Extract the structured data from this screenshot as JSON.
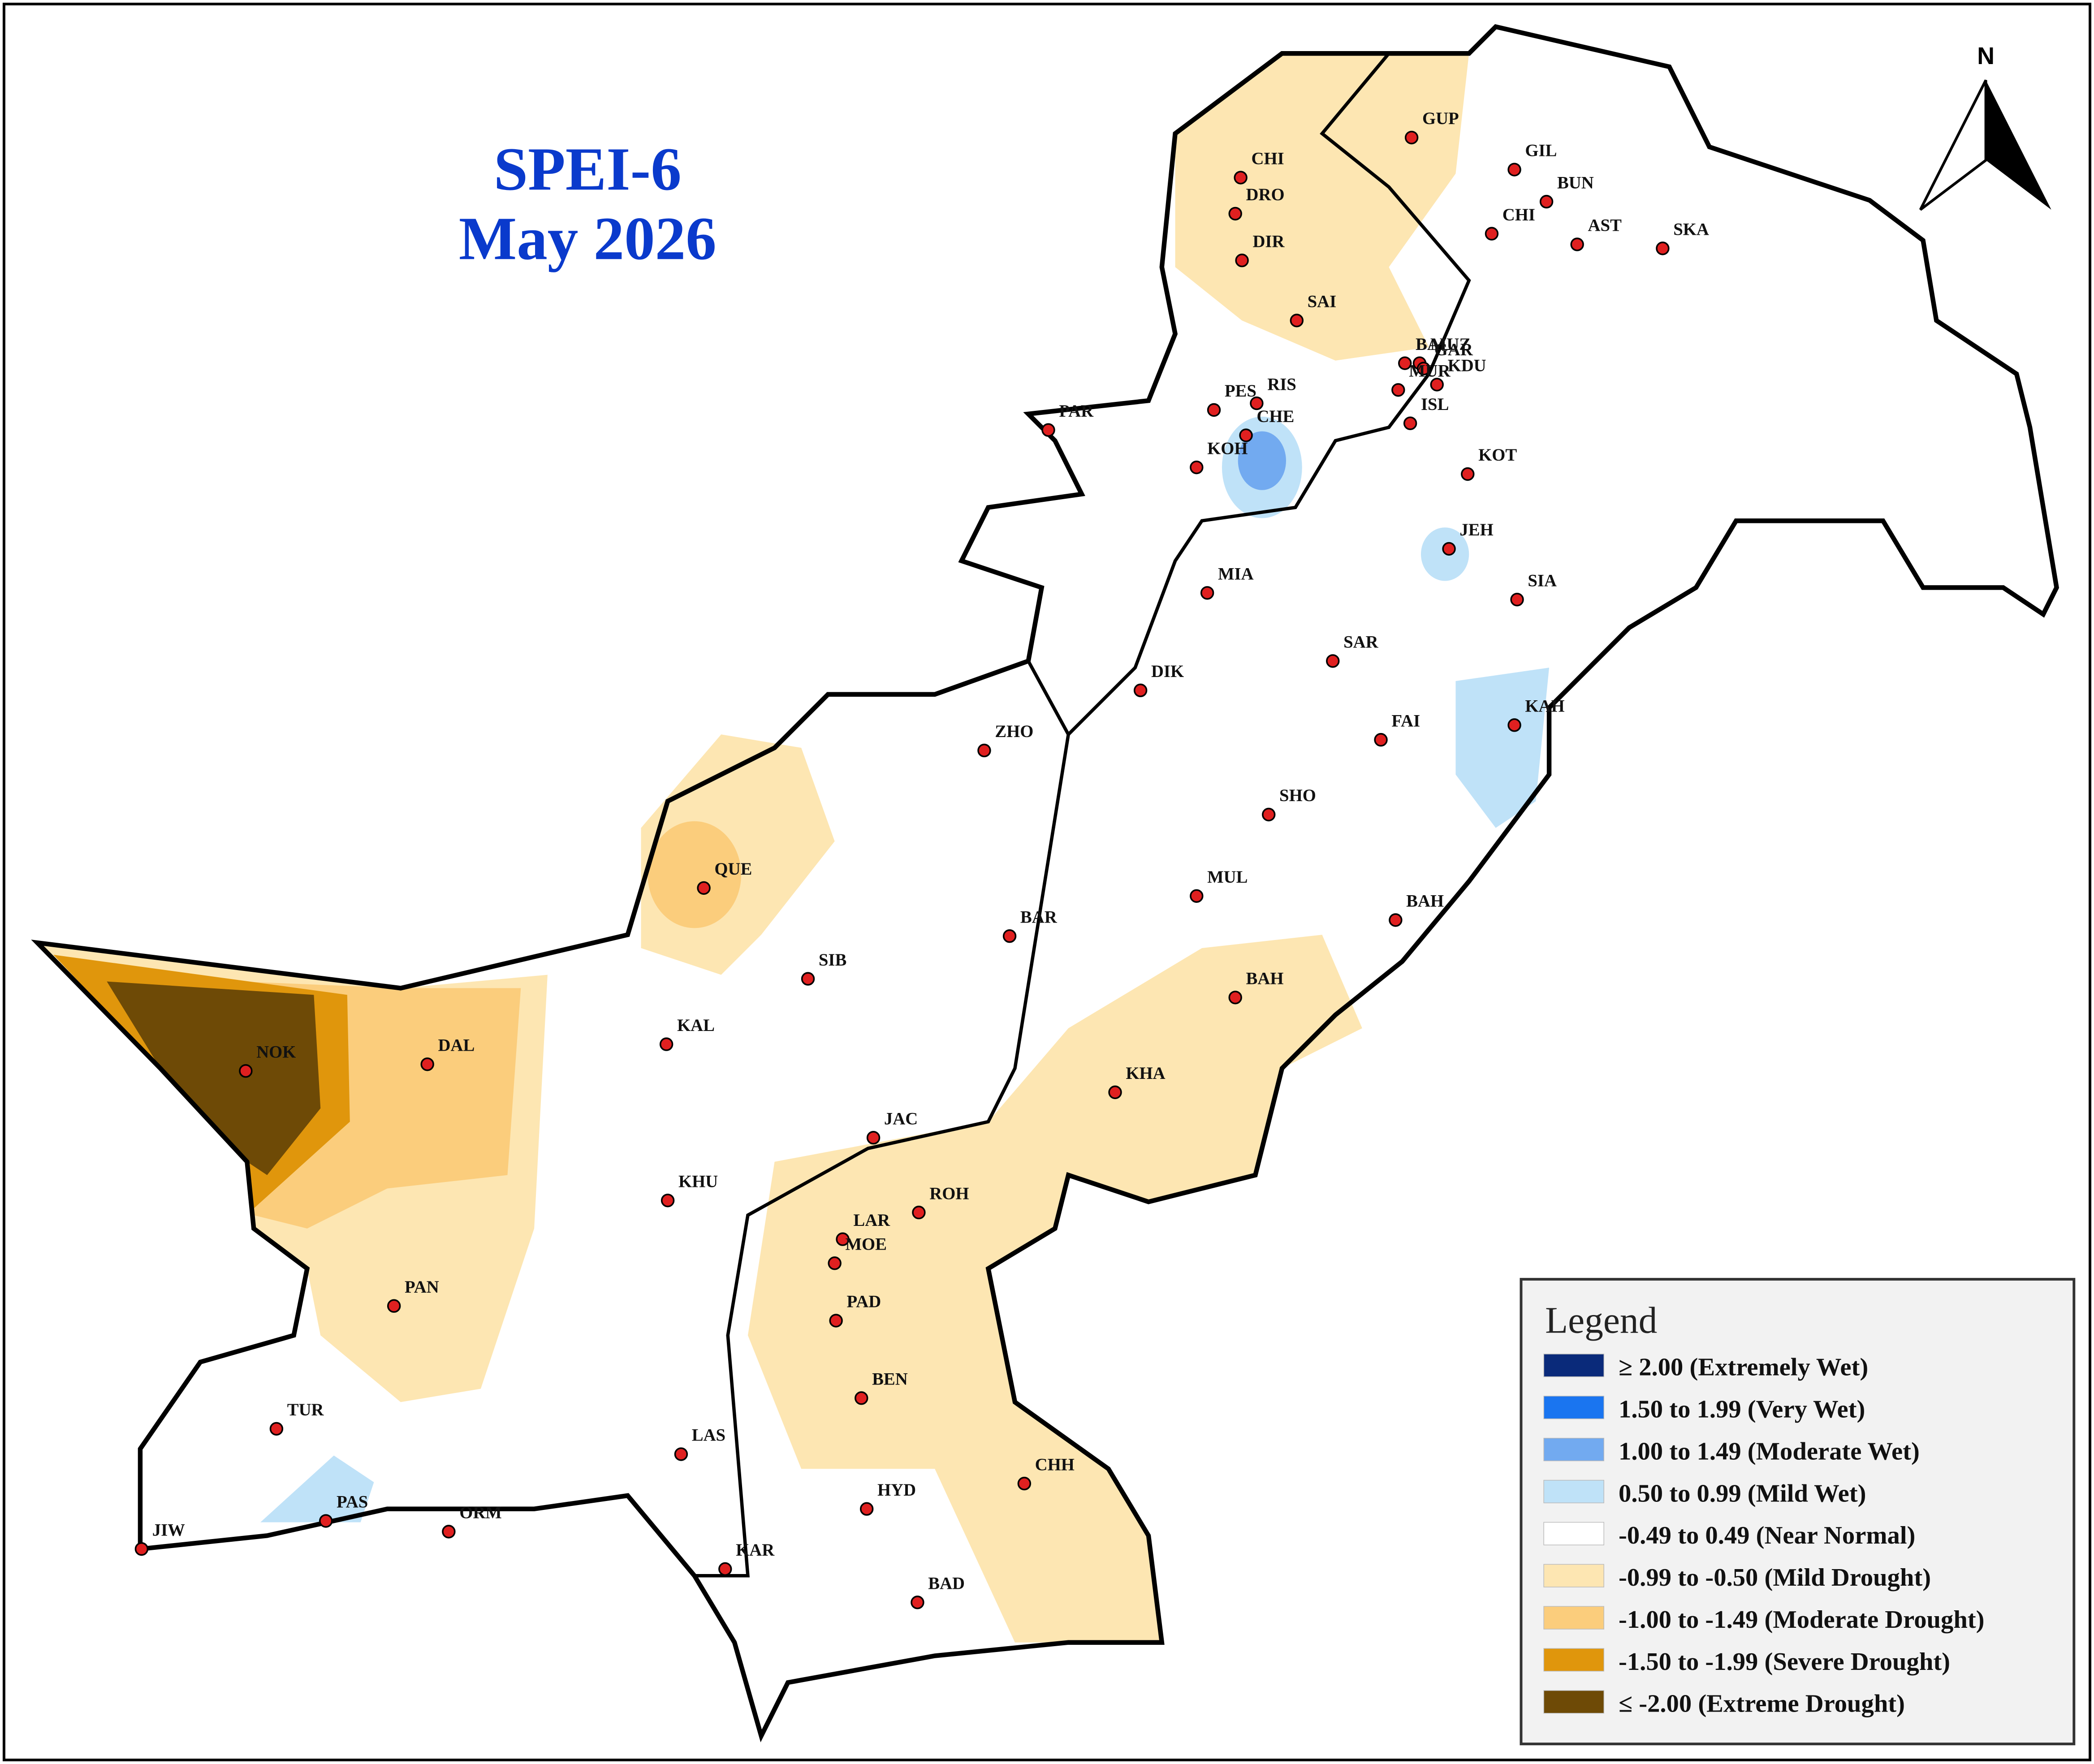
{
  "title": {
    "line1": "SPEI-6",
    "line2": "May 2026"
  },
  "north_label": "N",
  "stations": [
    "CHI",
    "DRO",
    "DIR",
    "SAI",
    "GUP",
    "GIL",
    "BUN",
    "CHI",
    "AST",
    "SKA",
    "BAL",
    "MUZ",
    "KDU",
    "GAR",
    "MUR",
    "PES",
    "RIS",
    "CHE",
    "KOH",
    "ISL",
    "KOT",
    "PAR",
    "JEH",
    "MIA",
    "SIA",
    "SAR",
    "DIK",
    "KAH",
    "FAI",
    "ZHO",
    "SHO",
    "MUL",
    "QUE",
    "BAH",
    "BAR",
    "SIB",
    "BAH",
    "KAL",
    "NOK",
    "DAL",
    "KHA",
    "JAC",
    "KHU",
    "ROH",
    "LAR",
    "MOE",
    "PAD",
    "PAN",
    "BEN",
    "TUR",
    "LAS",
    "CHH",
    "HYD",
    "PAS",
    "ORM",
    "JIW",
    "KAR",
    "BAD"
  ],
  "legend": {
    "title": "Legend",
    "items": [
      {
        "label": "≥ 2.00 (Extremely Wet)",
        "color": "#0a2a7a"
      },
      {
        "label": "1.50 to 1.99 (Very Wet)",
        "color": "#1a75f0"
      },
      {
        "label": "1.00 to 1.49 (Moderate Wet)",
        "color": "#72aaf0"
      },
      {
        "label": "0.50 to 0.99 (Mild Wet)",
        "color": "#bfe2f8"
      },
      {
        "label": "-0.49 to 0.49 (Near Normal)",
        "color": "#ffffff"
      },
      {
        "label": "-0.99 to -0.50 (Mild Drought)",
        "color": "#fde6b2"
      },
      {
        "label": "-1.00 to -1.49 (Moderate Drought)",
        "color": "#fbcd7c"
      },
      {
        "label": "-1.50 to -1.99 (Severe Drought)",
        "color": "#e0960c"
      },
      {
        "label": "≤ -2.00 (Extreme Drought)",
        "color": "#6e4a06"
      }
    ]
  }
}
